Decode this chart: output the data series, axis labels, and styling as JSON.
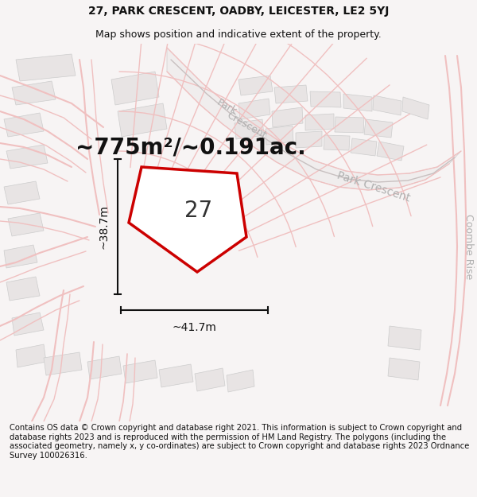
{
  "title_line1": "27, PARK CRESCENT, OADBY, LEICESTER, LE2 5YJ",
  "title_line2": "Map shows position and indicative extent of the property.",
  "area_text": "~775m²/~0.191ac.",
  "number_label": "27",
  "width_label": "~41.7m",
  "height_label": "~38.7m",
  "footer_text": "Contains OS data © Crown copyright and database right 2021. This information is subject to Crown copyright and database rights 2023 and is reproduced with the permission of HM Land Registry. The polygons (including the associated geometry, namely x, y co-ordinates) are subject to Crown copyright and database rights 2023 Ordnance Survey 100026316.",
  "bg_color": "#f7f4f4",
  "map_bg": "#ffffff",
  "road_color": "#f0c0c0",
  "road_color2": "#d0a0a0",
  "building_fill": "#e8e4e4",
  "building_edge": "#cccccc",
  "property_fill": "#ffffff",
  "property_edge": "#cc0000",
  "road_label_color": "#b0b0b0",
  "dim_color": "#111111",
  "title_fontsize": 10,
  "subtitle_fontsize": 9,
  "area_fontsize": 20,
  "number_fontsize": 20,
  "label_fontsize": 10,
  "road_fontsize": 9,
  "footer_fontsize": 7.2
}
